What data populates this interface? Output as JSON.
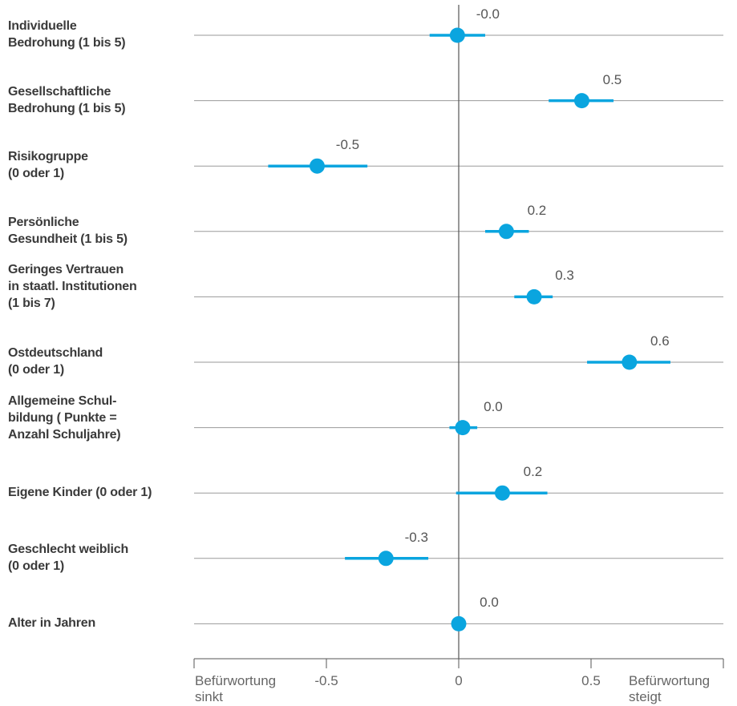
{
  "colors": {
    "accent": "#0aa5df",
    "grid": "#9a9a9a",
    "axis": "#555555",
    "text": "#3a3a3a"
  },
  "chart_data": {
    "type": "forest",
    "x_range": [
      -1.0,
      1.0
    ],
    "x_ticks": [
      {
        "value": -0.5,
        "label": "-0.5"
      },
      {
        "value": 0,
        "label": "0"
      },
      {
        "value": 0.5,
        "label": "0.5"
      }
    ],
    "x_left_label": [
      "Befürwortung",
      "sinkt"
    ],
    "x_right_label": [
      "Befürwortung",
      "steigt"
    ],
    "rows": [
      {
        "label": [
          "Individuelle",
          "Bedrohung (1 bis 5)"
        ],
        "value": -0.005,
        "ci": [
          -0.11,
          0.1
        ],
        "value_label": "-0.0"
      },
      {
        "label": [
          "Gesellschaftliche",
          "Bedrohung (1 bis 5)"
        ],
        "value": 0.465,
        "ci": [
          0.34,
          0.585
        ],
        "value_label": "0.5"
      },
      {
        "label": [
          "Risikogruppe",
          "(0 oder 1)"
        ],
        "value": -0.535,
        "ci": [
          -0.72,
          -0.345
        ],
        "value_label": "-0.5"
      },
      {
        "label": [
          "Persönliche",
          "Gesundheit (1 bis 5)"
        ],
        "value": 0.18,
        "ci": [
          0.1,
          0.265
        ],
        "value_label": "0.2"
      },
      {
        "label": [
          "Geringes Vertrauen",
          "in staatl. Institutionen",
          "(1 bis 7)"
        ],
        "value": 0.285,
        "ci": [
          0.21,
          0.355
        ],
        "value_label": "0.3"
      },
      {
        "label": [
          "Ostdeutschland",
          "(0 oder 1)"
        ],
        "value": 0.645,
        "ci": [
          0.485,
          0.8
        ],
        "value_label": "0.6"
      },
      {
        "label": [
          "Allgemeine Schul-",
          "bildung ( Punkte =",
          "Anzahl Schuljahre)"
        ],
        "value": 0.015,
        "ci": [
          -0.035,
          0.07
        ],
        "value_label": "0.0"
      },
      {
        "label": [
          "Eigene Kinder (0 oder 1)"
        ],
        "value": 0.165,
        "ci": [
          -0.01,
          0.335
        ],
        "value_label": "0.2"
      },
      {
        "label": [
          "Geschlecht weiblich",
          "(0 oder 1)"
        ],
        "value": -0.275,
        "ci": [
          -0.43,
          -0.115
        ],
        "value_label": "-0.3"
      },
      {
        "label": [
          "Alter in Jahren"
        ],
        "value": 0.0,
        "ci": [
          -0.004,
          0.004
        ],
        "value_label": "0.0"
      }
    ]
  }
}
